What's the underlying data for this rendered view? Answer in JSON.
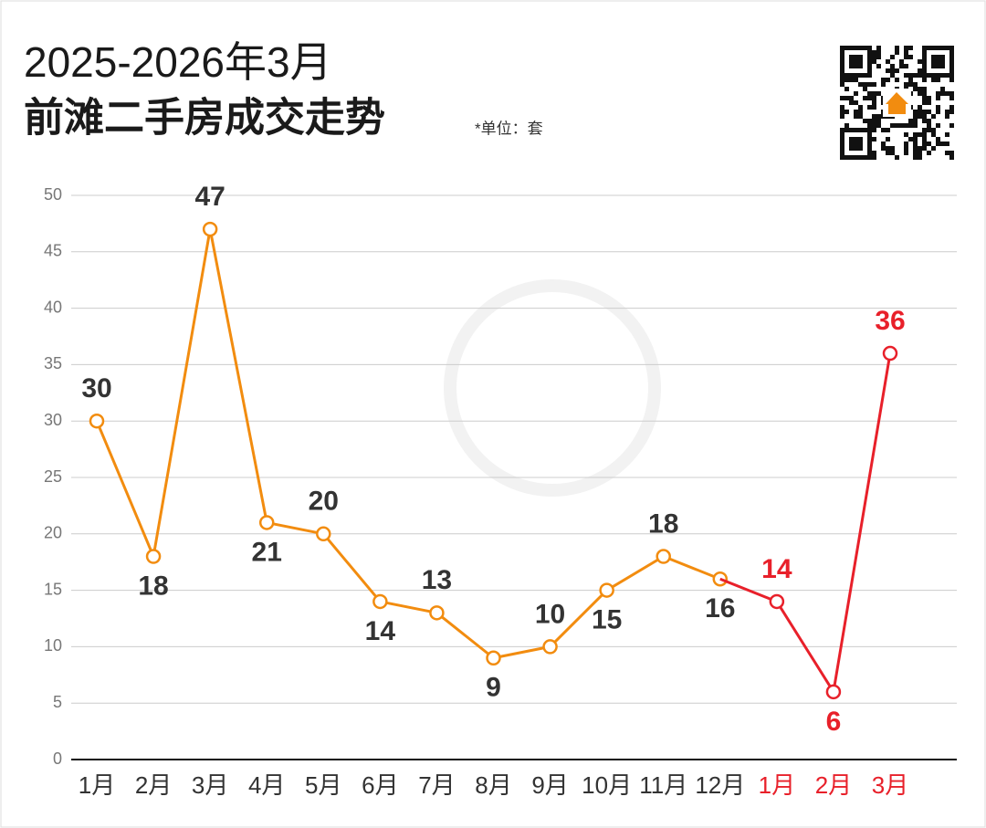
{
  "chart_data": {
    "type": "line",
    "title": "2025-2026年3月",
    "subtitle": "前滩二手房成交走势",
    "unit_note": "*单位：套",
    "categories": [
      "1月",
      "2月",
      "3月",
      "4月",
      "5月",
      "6月",
      "7月",
      "8月",
      "9月",
      "10月",
      "11月",
      "12月",
      "1月",
      "2月",
      "3月"
    ],
    "series": [
      {
        "name": "2025",
        "color": "#f28c0f",
        "values": [
          30,
          18,
          47,
          21,
          20,
          14,
          13,
          9,
          10,
          15,
          18,
          16,
          null,
          null,
          null
        ]
      },
      {
        "name": "2026",
        "color": "#e8202a",
        "values": [
          null,
          null,
          null,
          null,
          null,
          null,
          null,
          null,
          null,
          null,
          null,
          null,
          14,
          6,
          36
        ]
      }
    ],
    "ylim": [
      0,
      50
    ],
    "yticks": [
      0,
      5,
      10,
      15,
      20,
      25,
      30,
      35,
      40,
      45,
      50
    ],
    "grid": true
  }
}
